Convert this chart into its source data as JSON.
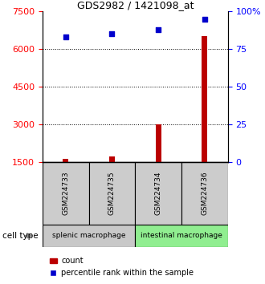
{
  "title": "GDS2982 / 1421098_at",
  "samples": [
    "GSM224733",
    "GSM224735",
    "GSM224734",
    "GSM224736"
  ],
  "counts": [
    1620,
    1730,
    3000,
    6500
  ],
  "percentiles": [
    83,
    85,
    88,
    95
  ],
  "groups": [
    {
      "label": "splenic macrophage",
      "samples": [
        0,
        1
      ],
      "color": "#c8c8c8"
    },
    {
      "label": "intestinal macrophage",
      "samples": [
        2,
        3
      ],
      "color": "#90ee90"
    }
  ],
  "ylim_left": [
    1500,
    7500
  ],
  "yticks_left": [
    1500,
    3000,
    4500,
    6000,
    7500
  ],
  "ylim_right": [
    0,
    100
  ],
  "yticks_right": [
    0,
    25,
    50,
    75,
    100
  ],
  "bar_color": "#bb0000",
  "scatter_color": "#0000cc",
  "bar_width": 0.12,
  "baseline": 1500,
  "cell_type_label": "cell type",
  "legend_items": [
    "count",
    "percentile rank within the sample"
  ]
}
